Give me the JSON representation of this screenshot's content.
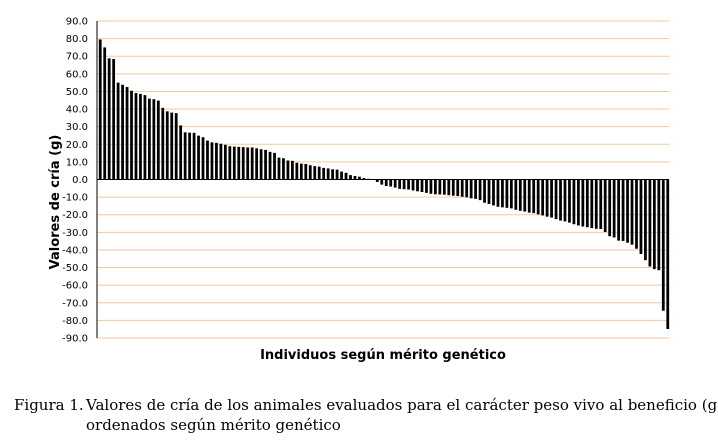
{
  "chart_data": {
    "type": "bar",
    "title": "",
    "xlabel": "Individuos según mérito genético",
    "ylabel": "Valores de cría (g)",
    "ylim": [
      -90,
      90
    ],
    "yticks": [
      "90.0",
      "80.0",
      "70.0",
      "60.0",
      "50.0",
      "40.0",
      "30.0",
      "20.0",
      "10.0",
      "0.0",
      "-10.0",
      "-20.0",
      "-30.0",
      "-40.0",
      "-50.0",
      "-60.0",
      "-70.0",
      "-80.0",
      "-90.0"
    ],
    "grid": true,
    "bar_color": "#000000",
    "grid_color": "#f0c9a0",
    "values": [
      79.5,
      75.0,
      68.8,
      68.4,
      55.0,
      53.8,
      52.5,
      50.4,
      49.1,
      48.6,
      47.9,
      45.9,
      45.6,
      44.8,
      40.7,
      38.7,
      38.0,
      37.7,
      30.7,
      26.8,
      26.6,
      26.5,
      24.9,
      24.0,
      22.1,
      21.1,
      20.8,
      20.3,
      19.7,
      18.9,
      18.7,
      18.5,
      18.4,
      18.2,
      18.2,
      17.7,
      17.2,
      16.8,
      15.7,
      15.1,
      12.4,
      12.1,
      10.8,
      10.6,
      9.5,
      9.0,
      8.8,
      8.1,
      7.6,
      7.3,
      6.6,
      6.3,
      5.8,
      5.6,
      4.5,
      3.8,
      2.5,
      2.0,
      1.6,
      0.8,
      0.4,
      0.0,
      -1.4,
      -2.9,
      -3.7,
      -4.0,
      -4.6,
      -5.3,
      -5.5,
      -5.7,
      -6.2,
      -6.7,
      -7.1,
      -7.6,
      -8.1,
      -8.4,
      -8.5,
      -8.6,
      -8.9,
      -9.2,
      -9.4,
      -9.8,
      -10.1,
      -10.7,
      -11.0,
      -11.7,
      -13.2,
      -13.9,
      -14.7,
      -15.5,
      -15.8,
      -16.1,
      -16.4,
      -17.2,
      -17.8,
      -18.2,
      -18.8,
      -19.1,
      -19.8,
      -20.4,
      -21.1,
      -21.6,
      -22.5,
      -23.3,
      -23.8,
      -24.5,
      -25.4,
      -26.1,
      -26.7,
      -27.1,
      -27.6,
      -28.0,
      -28.1,
      -29.8,
      -32.2,
      -32.9,
      -34.7,
      -34.9,
      -35.9,
      -37.0,
      -39.3,
      -42.3,
      -45.8,
      -49.4,
      -50.9,
      -51.5,
      -74.5,
      -84.9
    ]
  },
  "caption": {
    "number": "Figura 1.",
    "line1": "Valores de cría de los animales evaluados para el carácter peso vivo al beneficio (g) y",
    "line2": "ordenados según mérito genético"
  }
}
